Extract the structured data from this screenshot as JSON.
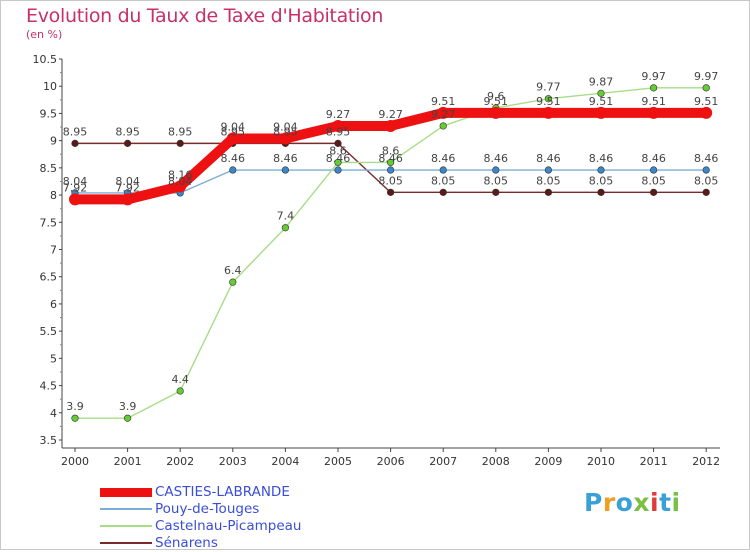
{
  "title": "Evolution du Taux de Taxe d'Habitation",
  "subtitle": "(en %)",
  "logo_text": "Proxiti",
  "chart_data": {
    "type": "line",
    "title": "Evolution du Taux de Taxe d'Habitation",
    "ylabel": "(en %)",
    "xlabel": "",
    "categories": [
      "2000",
      "2001",
      "2002",
      "2003",
      "2004",
      "2005",
      "2006",
      "2007",
      "2008",
      "2009",
      "2010",
      "2011",
      "2012"
    ],
    "ylim": [
      3.5,
      10.5
    ],
    "yticks": [
      "3.5",
      "4",
      "4.5",
      "5",
      "5.5",
      "6",
      "6.5",
      "7",
      "7.5",
      "8",
      "8.5",
      "9",
      "9.5",
      "10",
      "10.5"
    ],
    "grid": false,
    "legend_position": "bottom-left",
    "series": [
      {
        "name": "CASTIES-LABRANDE",
        "color": "#ee1111",
        "marker_color": "#ee1111",
        "values": [
          7.92,
          7.92,
          8.16,
          9.04,
          9.04,
          9.27,
          9.27,
          9.51,
          9.51,
          9.51,
          9.51,
          9.51,
          9.51
        ],
        "labels": [
          "7.92",
          "7.92",
          "8.16",
          "9.04",
          "9.04",
          "9.27",
          "9.27",
          "9.51",
          "9.51",
          "9.51",
          "9.51",
          "9.51",
          "9.51"
        ]
      },
      {
        "name": "Pouy-de-Touges",
        "color": "#7aaed6",
        "marker_color": "#3a88cc",
        "values": [
          8.04,
          8.04,
          8.04,
          8.46,
          8.46,
          8.46,
          8.46,
          8.46,
          8.46,
          8.46,
          8.46,
          8.46,
          8.46
        ],
        "labels": [
          "8.04",
          "8.04",
          "8.04",
          "8.46",
          "8.46",
          "8.46",
          "8.46",
          "8.46",
          "8.46",
          "8.46",
          "8.46",
          "8.46",
          "8.46"
        ]
      },
      {
        "name": "Castelnau-Picampeau",
        "color": "#a8dd88",
        "marker_color": "#66cc33",
        "values": [
          3.9,
          3.9,
          4.4,
          6.4,
          7.4,
          8.6,
          8.6,
          9.27,
          9.6,
          9.77,
          9.87,
          9.97,
          9.97
        ],
        "labels": [
          "3.9",
          "3.9",
          "4.4",
          "6.4",
          "7.4",
          "8.6",
          "8.6",
          "9.27",
          "9.6",
          "9.77",
          "9.87",
          "9.97",
          "9.97"
        ]
      },
      {
        "name": "Sénarens",
        "color": "#7a2a2a",
        "marker_color": "#5a1a1a",
        "values": [
          8.95,
          8.95,
          8.95,
          8.95,
          8.95,
          8.95,
          8.05,
          8.05,
          8.05,
          8.05,
          8.05,
          8.05,
          8.05
        ],
        "labels": [
          "8.95",
          "8.95",
          "8.95",
          "8.95",
          "8.95",
          "8.95",
          "8.05",
          "8.05",
          "8.05",
          "8.05",
          "8.05",
          "8.05",
          "8.05"
        ]
      }
    ]
  }
}
